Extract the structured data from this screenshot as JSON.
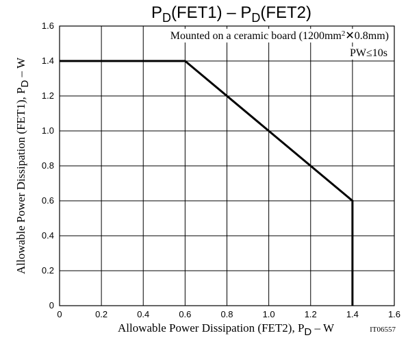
{
  "chart_data": {
    "type": "line",
    "title": {
      "text": "P",
      "sub": "D",
      "rest": "(FET1)  –  P",
      "sub2": "D",
      "rest2": "(FET2)"
    },
    "xlabel": {
      "text": "Allowable Power Dissipation (FET2), P",
      "sub": "D",
      "rest": "  –  W"
    },
    "ylabel": {
      "text": "Allowable Power Dissipation (FET1), P",
      "sub": "D",
      "rest": "  –  W"
    },
    "xlim": [
      0,
      1.6
    ],
    "ylim": [
      0,
      1.6
    ],
    "xticks": [
      "0",
      "0.2",
      "0.4",
      "0.6",
      "0.8",
      "1.0",
      "1.2",
      "1.4",
      "1.6"
    ],
    "yticks": [
      "0",
      "0.2",
      "0.4",
      "0.6",
      "0.8",
      "1.0",
      "1.2",
      "1.4",
      "1.6"
    ],
    "xtick_values": [
      0,
      0.2,
      0.4,
      0.6,
      0.8,
      1.0,
      1.2,
      1.4,
      1.6
    ],
    "ytick_values": [
      0,
      0.2,
      0.4,
      0.6,
      0.8,
      1.0,
      1.2,
      1.4,
      1.6
    ],
    "grid": true,
    "series": [
      {
        "x": [
          0,
          0.6,
          1.4,
          1.4
        ],
        "y": [
          1.4,
          1.4,
          0.6,
          0
        ]
      }
    ],
    "annotations": {
      "mount_prefix": "Mounted on a ceramic board (1200mm",
      "mount_sup": "2",
      "mount_x": "✕",
      "mount_suffix": "0.8mm)",
      "pw": "PW≤10s"
    },
    "figure_code": "IT06557"
  }
}
